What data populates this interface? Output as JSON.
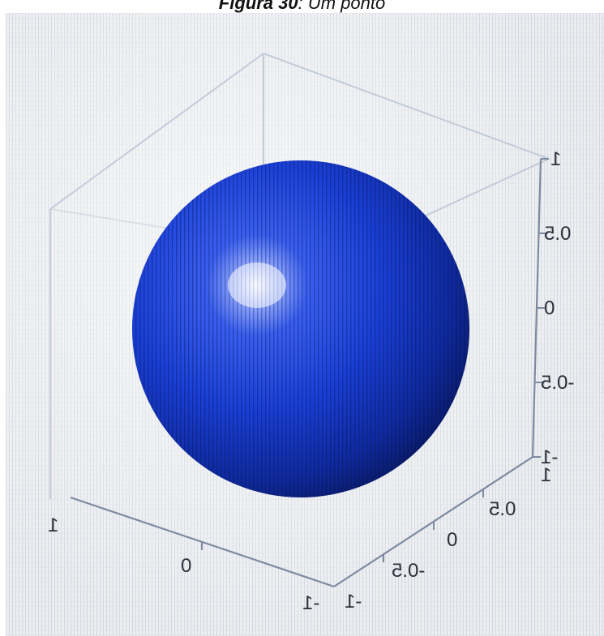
{
  "caption": {
    "label": "Figura 30",
    "separator": ":",
    "title": "Um ponto"
  },
  "plot": {
    "object": "sphere",
    "sphere_color": "#1a3fd6",
    "z_ticks": [
      "1",
      "0.5",
      "0",
      "-0.5",
      "-1"
    ],
    "y_ticks": [
      "1",
      "0.5",
      "0",
      "-0.5",
      "-1"
    ],
    "x_ticks": [
      "1",
      "0",
      "-1"
    ],
    "text_mirrored": true
  }
}
